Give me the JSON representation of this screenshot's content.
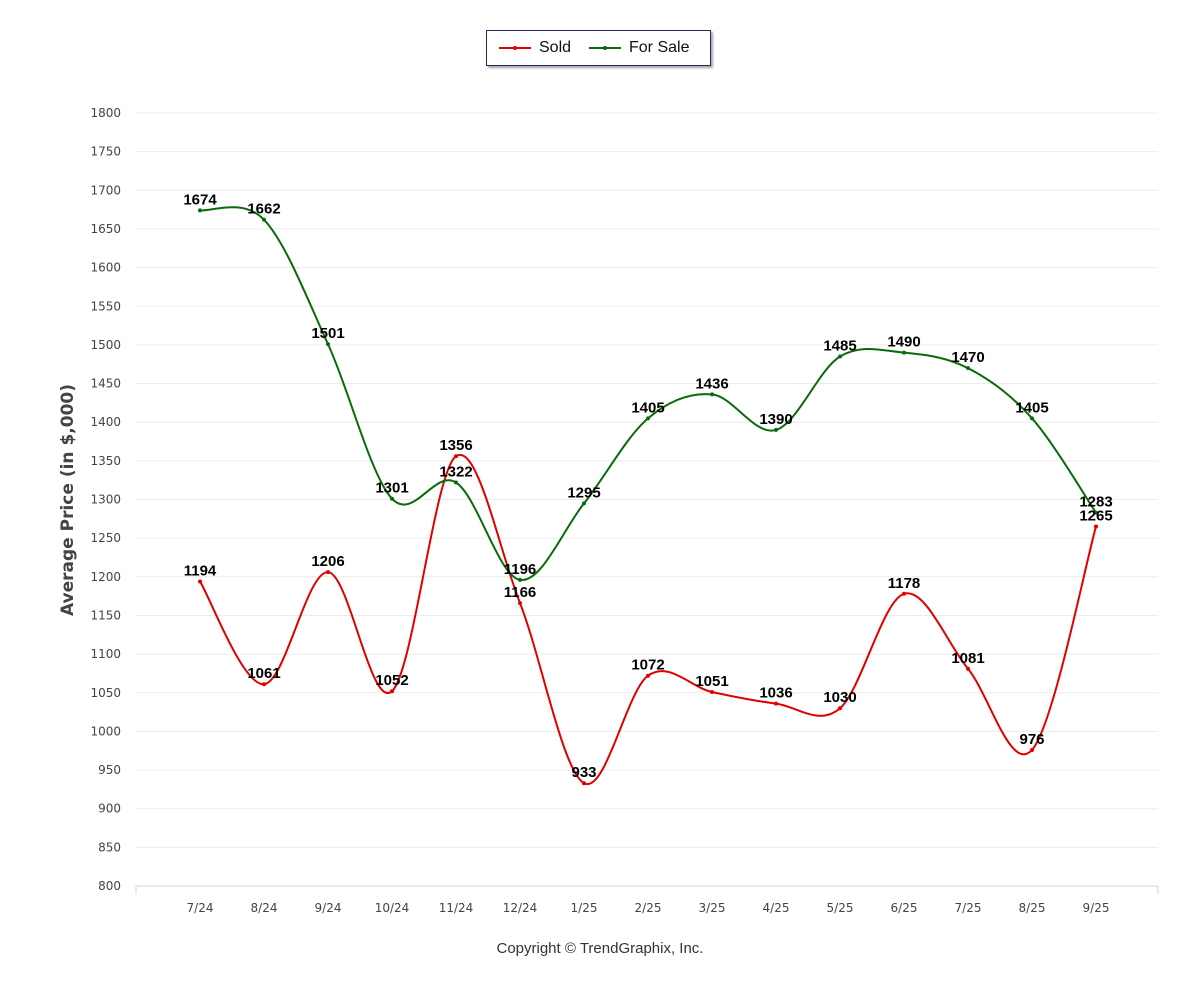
{
  "chart_data": {
    "type": "line",
    "title": "",
    "xlabel": "",
    "ylabel": "Average Price (in $,000)",
    "ylim": [
      800,
      1800
    ],
    "ytick_step": 50,
    "grid": true,
    "legend_position": "top-center",
    "categories": [
      "7/24",
      "8/24",
      "9/24",
      "10/24",
      "11/24",
      "12/24",
      "1/25",
      "2/25",
      "3/25",
      "4/25",
      "5/25",
      "6/25",
      "7/25",
      "8/25",
      "9/25"
    ],
    "series": [
      {
        "name": "Sold",
        "color": "#e00000",
        "values": [
          1194,
          1061,
          1206,
          1052,
          1356,
          1166,
          933,
          1072,
          1051,
          1036,
          1030,
          1178,
          1081,
          976,
          1265
        ]
      },
      {
        "name": "For Sale",
        "color": "#0a6b0a",
        "values": [
          1674,
          1662,
          1501,
          1301,
          1322,
          1196,
          1295,
          1405,
          1436,
          1390,
          1485,
          1490,
          1470,
          1405,
          1283
        ]
      }
    ]
  },
  "copyright": "Copyright © TrendGraphix, Inc."
}
